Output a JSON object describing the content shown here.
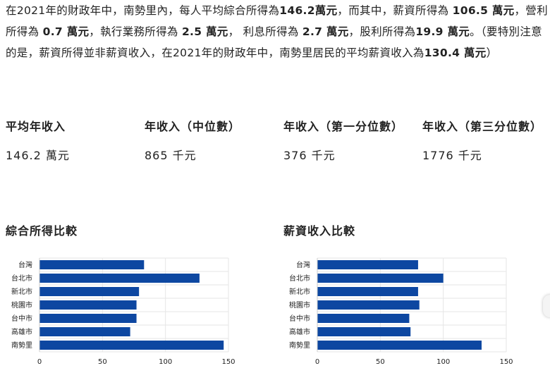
{
  "intro": {
    "parts": [
      {
        "t": "在",
        "b": false
      },
      {
        "t": "2021",
        "b": false
      },
      {
        "t": "年的財政年中，南勢里內，每人平均綜合所得為",
        "b": false
      },
      {
        "t": "146.2萬元",
        "b": true
      },
      {
        "t": "，而其中，薪資所得為 ",
        "b": false
      },
      {
        "t": "106.5 萬元",
        "b": true
      },
      {
        "t": "，營利所得為 ",
        "b": false
      },
      {
        "t": "0.7 萬元",
        "b": true
      },
      {
        "t": "，執行業務所得為 ",
        "b": false
      },
      {
        "t": "2.5 萬元",
        "b": true
      },
      {
        "t": "， 利息所得為 ",
        "b": false
      },
      {
        "t": "2.7 萬元",
        "b": true
      },
      {
        "t": "，股利所得為",
        "b": false
      },
      {
        "t": "19.9 萬元",
        "b": true
      },
      {
        "t": "。（要特別注意的是，薪資所得並非薪資收入，在",
        "b": false
      },
      {
        "t": "2021",
        "b": false
      },
      {
        "t": "年的財政年中，南勢里居民的平均薪資收入為",
        "b": false
      },
      {
        "t": "130.4 萬元",
        "b": true
      },
      {
        "t": "）",
        "b": false
      }
    ]
  },
  "stats": [
    {
      "label": "平均年收入",
      "value": "146.2 萬元"
    },
    {
      "label": "年收入（中位數）",
      "value": "865 千元"
    },
    {
      "label": "年收入（第一分位數）",
      "value": "376 千元"
    },
    {
      "label": "年收入（第三分位數）",
      "value": "1776 千元"
    }
  ],
  "charts": {
    "left_title": "綜合所得比較",
    "right_title": "薪資收入比較"
  },
  "chart_data": [
    {
      "type": "bar",
      "orientation": "horizontal",
      "title": "綜合所得比較",
      "categories": [
        "台灣",
        "台北市",
        "新北市",
        "桃園市",
        "台中市",
        "高雄市",
        "南勢里"
      ],
      "values": [
        83,
        127,
        79,
        77,
        77,
        72,
        146.2
      ],
      "xlim": [
        0,
        150
      ],
      "xticks": [
        "0",
        "50",
        "100",
        "150"
      ],
      "grid": true,
      "bar_color": "#0d47a1"
    },
    {
      "type": "bar",
      "orientation": "horizontal",
      "title": "薪資收入比較",
      "categories": [
        "台灣",
        "台北市",
        "新北市",
        "桃園市",
        "台中市",
        "高雄市",
        "南勢里"
      ],
      "values": [
        80,
        100,
        80,
        81,
        73,
        74,
        130.4
      ],
      "xlim": [
        0,
        150
      ],
      "xticks": [
        "0",
        "50",
        "100",
        "150"
      ],
      "grid": true,
      "bar_color": "#0d47a1"
    }
  ]
}
